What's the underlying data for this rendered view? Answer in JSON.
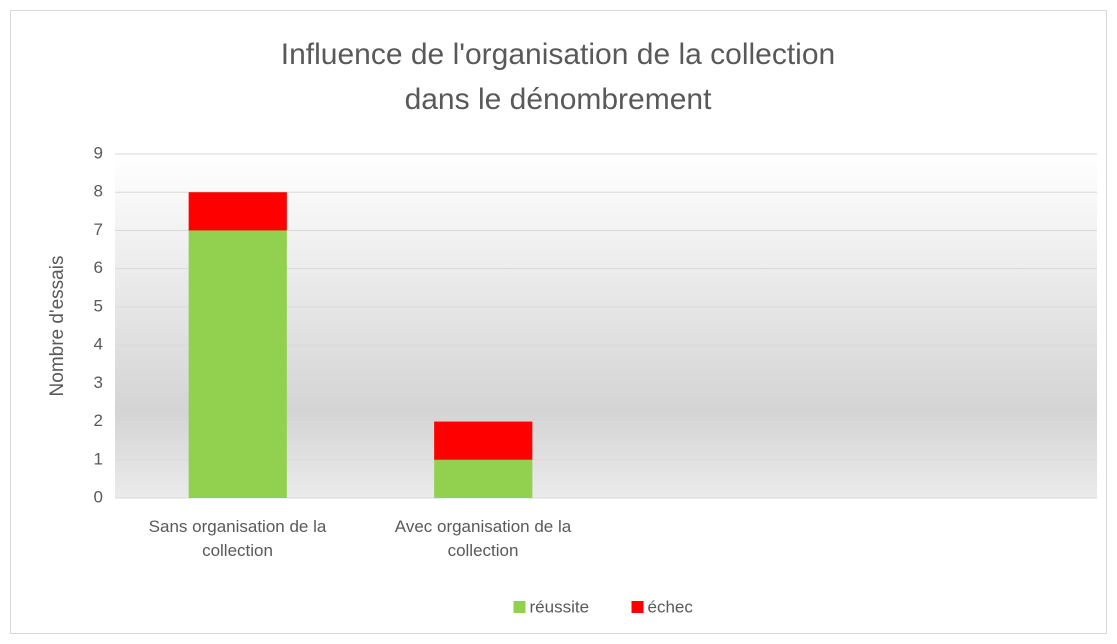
{
  "chart_data": {
    "type": "stacked_bar",
    "title": "Influence de l'organisation de la collection dans le dénombrement",
    "y_label": "Nombre d'essais",
    "categories": [
      "Sans organisation de la collection",
      "Avec organisation de la collection",
      null,
      null
    ],
    "series": [
      {
        "name": "réussite",
        "color": "#92d050",
        "values": [
          7,
          1,
          null,
          null
        ]
      },
      {
        "name": "échec",
        "color": "#ff0000",
        "values": [
          1,
          1,
          null,
          null
        ]
      }
    ],
    "ylim": [
      0,
      9
    ],
    "yticks": [
      0,
      1,
      2,
      3,
      4,
      5,
      6,
      7,
      8,
      9
    ],
    "grid": true,
    "legend": "bottom"
  }
}
